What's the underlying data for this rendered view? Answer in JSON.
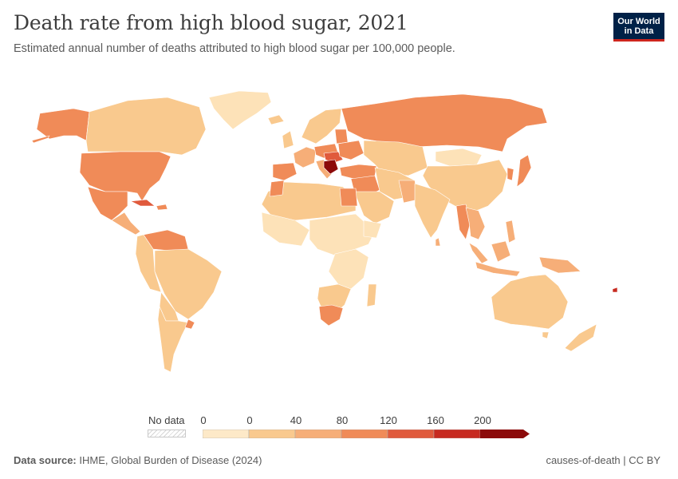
{
  "header": {
    "title": "Death rate from high blood sugar, 2021",
    "subtitle": "Estimated annual number of deaths attributed to high blood sugar per 100,000 people."
  },
  "logo": {
    "line1": "Our World",
    "line2": "in Data",
    "bg_color": "#002147",
    "accent_color": "#ce261e"
  },
  "legend": {
    "no_data_label": "No data",
    "ticks": [
      "0",
      "0",
      "40",
      "80",
      "120",
      "160",
      "200"
    ],
    "bins": [
      {
        "color": "#fde9c8"
      },
      {
        "color": "#f9c98e"
      },
      {
        "color": "#f6ae78"
      },
      {
        "color": "#f08b58"
      },
      {
        "color": "#e05a3c"
      },
      {
        "color": "#c72a20"
      },
      {
        "color": "#8c0a0a"
      }
    ]
  },
  "footer": {
    "source_label": "Data source:",
    "source_text": "IHME, Global Burden of Disease (2024)",
    "right_text": "causes-of-death | CC BY"
  }
}
